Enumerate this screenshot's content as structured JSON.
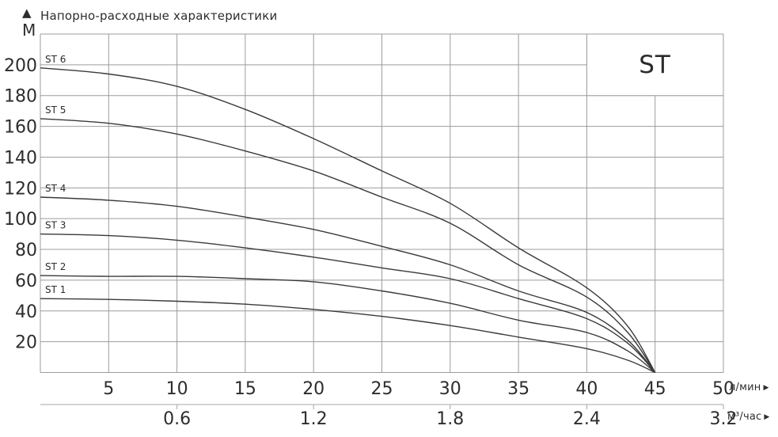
{
  "chart_data": {
    "type": "line",
    "title": "Напорно-расходные характеристики",
    "ylabel": "М",
    "xlabel": "л/мин",
    "x2label": "м³/час",
    "legend": {
      "label": "ST",
      "position": "top-right"
    },
    "xlim": [
      0,
      50
    ],
    "ylim": [
      0,
      220
    ],
    "grid": true,
    "x_ticks": [
      5,
      10,
      15,
      20,
      25,
      30,
      35,
      40,
      45,
      50
    ],
    "y_ticks": [
      20,
      40,
      60,
      80,
      100,
      120,
      140,
      160,
      180,
      200
    ],
    "x2_ticks": [
      {
        "label": "0.6",
        "at_lmin": 10
      },
      {
        "label": "1.2",
        "at_lmin": 20
      },
      {
        "label": "1.8",
        "at_lmin": 30
      },
      {
        "label": "2.4",
        "at_lmin": 40
      },
      {
        "label": "3.2",
        "at_lmin": 50
      }
    ],
    "series": [
      {
        "name": "ST 6",
        "points": [
          [
            0,
            198
          ],
          [
            5,
            194
          ],
          [
            10,
            186
          ],
          [
            15,
            171
          ],
          [
            20,
            152
          ],
          [
            25,
            131
          ],
          [
            30,
            110
          ],
          [
            35,
            81
          ],
          [
            40,
            55
          ],
          [
            43,
            30
          ],
          [
            45,
            0
          ]
        ]
      },
      {
        "name": "ST 5",
        "points": [
          [
            0,
            165
          ],
          [
            5,
            162
          ],
          [
            10,
            155
          ],
          [
            15,
            144
          ],
          [
            20,
            131
          ],
          [
            25,
            114
          ],
          [
            30,
            97
          ],
          [
            35,
            70
          ],
          [
            40,
            49
          ],
          [
            43,
            26
          ],
          [
            45,
            0
          ]
        ]
      },
      {
        "name": "ST 4",
        "points": [
          [
            0,
            114
          ],
          [
            5,
            112
          ],
          [
            10,
            108
          ],
          [
            15,
            101
          ],
          [
            20,
            93
          ],
          [
            25,
            82
          ],
          [
            30,
            70
          ],
          [
            35,
            53
          ],
          [
            40,
            39
          ],
          [
            43,
            21
          ],
          [
            45,
            0
          ]
        ]
      },
      {
        "name": "ST 3",
        "points": [
          [
            0,
            90
          ],
          [
            5,
            89
          ],
          [
            10,
            86
          ],
          [
            15,
            81
          ],
          [
            20,
            75
          ],
          [
            25,
            68
          ],
          [
            30,
            61
          ],
          [
            35,
            48
          ],
          [
            40,
            35
          ],
          [
            43,
            19
          ],
          [
            45,
            0
          ]
        ]
      },
      {
        "name": "ST 2",
        "points": [
          [
            0,
            63
          ],
          [
            5,
            62.5
          ],
          [
            10,
            62.5
          ],
          [
            15,
            61
          ],
          [
            20,
            59
          ],
          [
            25,
            53
          ],
          [
            30,
            45
          ],
          [
            35,
            34
          ],
          [
            40,
            26
          ],
          [
            43,
            14
          ],
          [
            45,
            0
          ]
        ]
      },
      {
        "name": "ST 1",
        "points": [
          [
            0,
            48
          ],
          [
            5,
            47.5
          ],
          [
            10,
            46.3
          ],
          [
            15,
            44.4
          ],
          [
            20,
            41
          ],
          [
            25,
            36.5
          ],
          [
            30,
            30.5
          ],
          [
            35,
            23
          ],
          [
            40,
            15.5
          ],
          [
            43,
            8
          ],
          [
            45,
            0
          ]
        ]
      }
    ],
    "icons": {
      "axis_arrow_up": "▲",
      "axis_arrow_right": "▶"
    },
    "colors": {
      "curve": "#3a3a3a",
      "grid": "#9c9c9c",
      "axis2": "#a6a6a6",
      "text": "#2d2d2d",
      "background": "#ffffff"
    }
  }
}
